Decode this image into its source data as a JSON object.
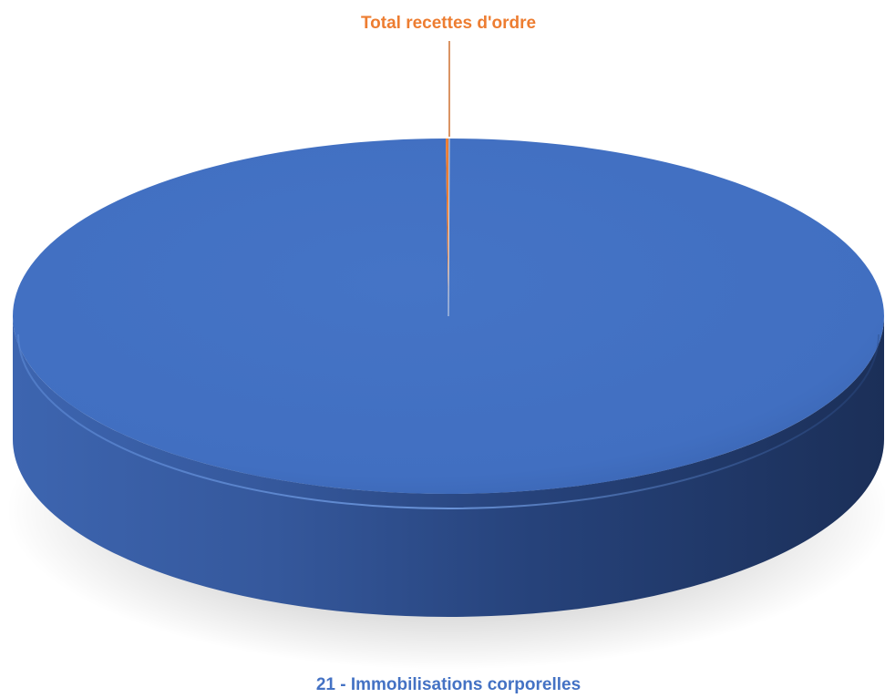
{
  "chart_data": {
    "type": "pie",
    "style": "3d",
    "title": "",
    "slices": [
      {
        "label": "21 - Immobilisations corporelles",
        "value": 99.9,
        "color": "#4472C4"
      },
      {
        "label": "Total recettes d'ordre",
        "value": 0.1,
        "color": "#ED7D31"
      }
    ]
  }
}
